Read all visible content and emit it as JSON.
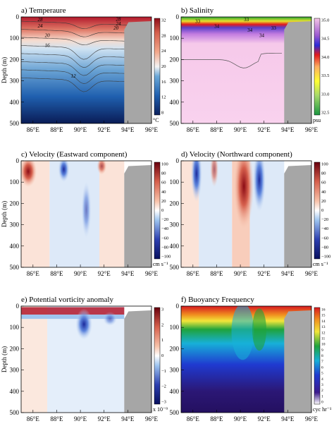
{
  "figure": {
    "x_ticks": [
      "86°E",
      "88°E",
      "90°E",
      "92°E",
      "94°E",
      "96°E"
    ],
    "x_ticks_alt": [
      "86°E",
      "88°E",
      "90°E",
      "92°E",
      "94°E",
      "96°E"
    ],
    "y_ticks": [
      "0",
      "100",
      "200",
      "300",
      "400",
      "500"
    ],
    "ylabel": "Depth (m)"
  },
  "colors": {
    "land": "#a6a6a6",
    "pos_strong": "#b2182b",
    "neg_strong": "#2c3fb0",
    "neutral": "#ffffff"
  },
  "chart_data": [
    {
      "id": "a",
      "type": "heatmap",
      "title": "a) Temperaure",
      "xlabel": "",
      "ylabel": "Depth (m)",
      "xlim": [
        85,
        96
      ],
      "ylim": [
        500,
        0
      ],
      "colorbar": {
        "ticks": [
          "8",
          "12",
          "16",
          "20",
          "24",
          "28",
          "32"
        ],
        "unit": "°C",
        "range": [
          8,
          32
        ]
      },
      "contour_labels": [
        "28",
        "24",
        "20",
        "16",
        "12",
        "28",
        "24",
        "20"
      ],
      "land_mask_from_lon": 93.7
    },
    {
      "id": "b",
      "type": "heatmap",
      "title": "b) Salinity",
      "xlabel": "",
      "ylabel": "",
      "xlim": [
        85,
        96
      ],
      "ylim": [
        500,
        0
      ],
      "colorbar": {
        "ticks": [
          "32.5",
          "33.0",
          "33.5",
          "34.0",
          "34.5",
          "35.0"
        ],
        "unit": "psu",
        "range": [
          32.5,
          35.0
        ]
      },
      "contour_labels": [
        "33",
        "34",
        "33",
        "34",
        "34",
        "33"
      ],
      "land_mask_from_lon": 93.7
    },
    {
      "id": "c",
      "type": "heatmap",
      "title": "c) Velocity (Eastward component)",
      "xlabel": "",
      "ylabel": "Depth (m)",
      "xlim": [
        85,
        96
      ],
      "ylim": [
        500,
        0
      ],
      "colorbar": {
        "ticks": [
          "100",
          "80",
          "60",
          "40",
          "20",
          "0",
          "−20",
          "−40",
          "−60",
          "−80",
          "−100"
        ],
        "unit": "cm s⁻¹",
        "range": [
          -100,
          100
        ]
      },
      "land_mask_from_lon": 93.7
    },
    {
      "id": "d",
      "type": "heatmap",
      "title": "d) Velocity (Northward component)",
      "xlabel": "",
      "ylabel": "",
      "xlim": [
        85,
        96
      ],
      "ylim": [
        500,
        0
      ],
      "colorbar": {
        "ticks": [
          "100",
          "80",
          "60",
          "40",
          "20",
          "0",
          "−20",
          "−40",
          "−60",
          "−80",
          "−100"
        ],
        "unit": "cm s⁻¹",
        "range": [
          -100,
          100
        ]
      },
      "land_mask_from_lon": 93.7
    },
    {
      "id": "e",
      "type": "heatmap",
      "title": "e) Potential vorticity anomaly",
      "xlabel": "",
      "ylabel": "Depth (m)",
      "xlim": [
        85,
        96
      ],
      "ylim": [
        500,
        0
      ],
      "colorbar": {
        "ticks": [
          "3",
          "2",
          "1",
          "0",
          "−1",
          "−2",
          "−3"
        ],
        "unit": "x 10⁻⁹",
        "range": [
          -3,
          3
        ]
      },
      "land_mask_from_lon": 93.7
    },
    {
      "id": "f",
      "type": "heatmap",
      "title": "f) Buoyancy Frequency",
      "xlabel": "",
      "ylabel": "",
      "xlim": [
        85,
        96
      ],
      "ylim": [
        500,
        0
      ],
      "colorbar": {
        "ticks": [
          "16",
          "15",
          "14",
          "13",
          "12",
          "11",
          "10",
          "9",
          "8",
          "7",
          "6",
          "5",
          "4",
          "3",
          "2",
          "1",
          "0"
        ],
        "unit": "cyc hr⁻¹",
        "range": [
          0,
          16
        ]
      },
      "land_mask_from_lon": 93.7
    }
  ]
}
